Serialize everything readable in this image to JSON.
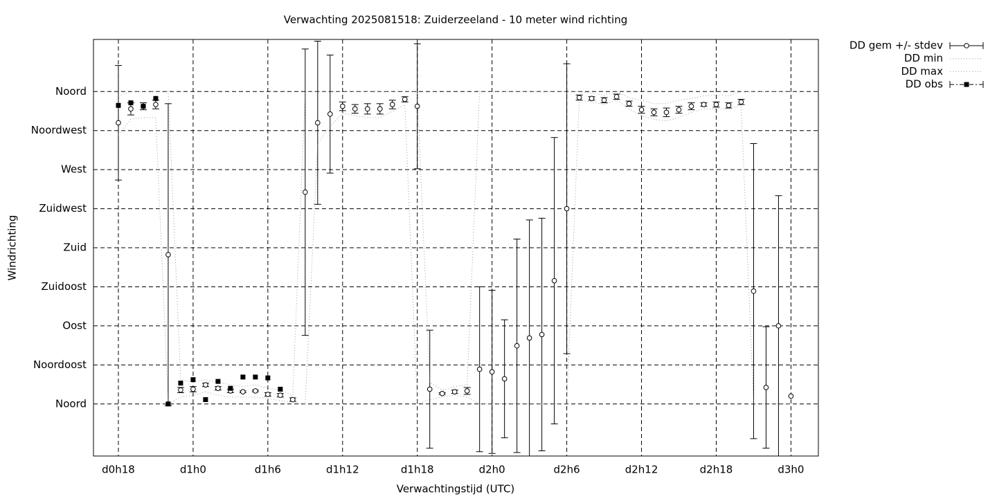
{
  "chart_data": {
    "type": "errorbar",
    "title": "Verwachting 2025081518: Zuiderzeeland - 10 meter wind richting",
    "x_label": "Verwachtingstijd (UTC)",
    "y_label": "Windrichting",
    "x": [
      0,
      1,
      2,
      3,
      4,
      5,
      6,
      7,
      8,
      9,
      10,
      11,
      12,
      13,
      14,
      15,
      16,
      17,
      18,
      19,
      20,
      21,
      22,
      23,
      24,
      25,
      26,
      27,
      28,
      29,
      30,
      31,
      32,
      33,
      34,
      35,
      36,
      37,
      38,
      39,
      40,
      41,
      42,
      43,
      44,
      45,
      46,
      47,
      48,
      49,
      50,
      51,
      52,
      53,
      54
    ],
    "xlim": [
      -2,
      56.2
    ],
    "xticks": [
      {
        "value": 0,
        "label": "d0h18"
      },
      {
        "value": 6,
        "label": "d1h0"
      },
      {
        "value": 12,
        "label": "d1h6"
      },
      {
        "value": 18,
        "label": "d1h12"
      },
      {
        "value": 24,
        "label": "d1h18"
      },
      {
        "value": 30,
        "label": "d2h0"
      },
      {
        "value": 36,
        "label": "d2h6"
      },
      {
        "value": 42,
        "label": "d2h12"
      },
      {
        "value": 48,
        "label": "d2h18"
      },
      {
        "value": 54,
        "label": "d3h0"
      }
    ],
    "ylim": [
      -60,
      420
    ],
    "yticks": [
      {
        "value": 0,
        "label": "Noord"
      },
      {
        "value": 45,
        "label": "Noordoost"
      },
      {
        "value": 90,
        "label": "Oost"
      },
      {
        "value": 135,
        "label": "Zuidoost"
      },
      {
        "value": 180,
        "label": "Zuid"
      },
      {
        "value": 225,
        "label": "Zuidwest"
      },
      {
        "value": 270,
        "label": "West"
      },
      {
        "value": 315,
        "label": "Noordwest"
      },
      {
        "value": 360,
        "label": "Noord"
      }
    ],
    "grid": true,
    "legend": "outside-top-right",
    "series": [
      {
        "name": "DD gem +/- stdev",
        "style": "errorbar",
        "color": "#000000",
        "values": [
          324,
          340,
          343,
          345,
          172,
          16,
          17,
          22,
          18,
          15,
          14,
          15,
          11,
          10,
          5,
          244,
          324,
          334,
          343,
          340,
          340,
          340,
          345,
          351,
          343,
          17,
          12,
          14,
          15,
          40,
          37,
          29,
          67,
          76,
          80,
          142,
          225,
          353,
          352,
          350,
          354,
          346,
          339,
          336,
          336,
          339,
          343,
          345,
          345,
          344,
          348,
          130,
          19,
          90,
          9
        ],
        "errors": [
          66,
          7,
          4,
          5,
          174,
          3,
          3,
          2,
          2,
          2,
          1,
          1,
          2,
          2,
          2,
          165,
          94,
          68,
          5,
          5,
          6,
          6,
          5,
          3,
          72,
          68,
          1,
          2,
          4,
          95,
          94,
          68,
          123,
          136,
          134,
          165,
          167,
          3,
          2,
          3,
          3,
          3,
          4,
          4,
          5,
          4,
          4,
          2,
          3,
          3,
          3,
          170,
          70,
          150,
          null
        ]
      },
      {
        "name": "DD min",
        "style": "dotted",
        "color": "#999999",
        "values": [
          310,
          328,
          330,
          330,
          0,
          8,
          10,
          14,
          10,
          8,
          8,
          8,
          6,
          4,
          2,
          0,
          300,
          320,
          335,
          332,
          330,
          330,
          337,
          345,
          0,
          5,
          8,
          10,
          8,
          0,
          0,
          0,
          0,
          0,
          0,
          0,
          0,
          350,
          348,
          345,
          350,
          340,
          332,
          328,
          326,
          330,
          336,
          340,
          340,
          340,
          344,
          0,
          0,
          0,
          0
        ]
      },
      {
        "name": "DD max",
        "style": "dotted",
        "color": "#999999",
        "values": [
          355,
          360,
          360,
          360,
          360,
          28,
          25,
          28,
          25,
          22,
          20,
          22,
          18,
          16,
          10,
          360,
          360,
          360,
          360,
          360,
          360,
          360,
          360,
          360,
          360,
          25,
          16,
          20,
          22,
          360,
          360,
          360,
          360,
          360,
          360,
          360,
          360,
          360,
          358,
          356,
          360,
          353,
          350,
          346,
          346,
          350,
          352,
          355,
          356,
          355,
          360,
          360,
          360,
          360,
          360
        ]
      },
      {
        "name": "DD obs",
        "style": "square",
        "color": "#000000",
        "values": [
          344,
          347,
          343,
          352,
          0,
          24,
          28,
          5,
          26,
          18,
          31,
          31,
          30,
          17,
          null,
          null,
          null,
          null,
          null,
          null,
          null,
          null,
          null,
          null,
          null,
          null,
          null,
          null,
          null,
          null,
          null,
          null,
          null,
          null,
          null,
          null,
          null,
          null,
          null,
          null,
          null,
          null,
          null,
          null,
          null,
          null,
          null,
          null,
          null,
          null,
          null,
          null,
          null,
          null,
          null
        ]
      }
    ]
  }
}
